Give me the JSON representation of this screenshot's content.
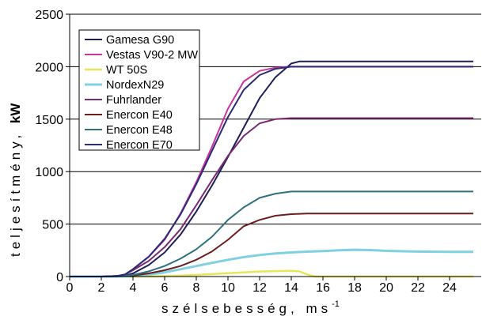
{
  "chart_data": {
    "type": "line",
    "title": "",
    "xlabel_main": "szélsebesség, ms",
    "xlabel_sup": "-1",
    "ylabel_main": "teljesítmény, ",
    "ylabel_unit": "kW",
    "xlim": [
      0,
      26
    ],
    "ylim": [
      0,
      2500
    ],
    "x_ticks": [
      "0",
      "2",
      "4",
      "6",
      "8",
      "10",
      "12",
      "14",
      "16",
      "18",
      "20",
      "22",
      "24"
    ],
    "y_ticks": [
      "0",
      "500",
      "1000",
      "1500",
      "2000",
      "2500"
    ],
    "grid": "horizontal",
    "legend_position": "top-left",
    "series": [
      {
        "name": "Gamesa G90",
        "color": "#1e1e5a",
        "width": 2,
        "x": [
          0,
          1,
          2,
          3,
          3.5,
          4,
          5,
          6,
          7,
          8,
          9,
          10,
          11,
          12,
          13,
          14,
          14.5,
          15,
          20,
          25.5
        ],
        "y": [
          0,
          0,
          0,
          5,
          10,
          30,
          110,
          230,
          400,
          620,
          870,
          1140,
          1420,
          1700,
          1900,
          2030,
          2050,
          2050,
          2050,
          2050
        ]
      },
      {
        "name": "Vestas V90-2 MW",
        "color": "#cc3399",
        "width": 2,
        "x": [
          0,
          1,
          2,
          3,
          3.5,
          4,
          5,
          6,
          7,
          8,
          9,
          10,
          11,
          12,
          13,
          14,
          15,
          20,
          25.5
        ],
        "y": [
          0,
          0,
          0,
          5,
          20,
          70,
          190,
          350,
          600,
          900,
          1240,
          1600,
          1860,
          1960,
          1990,
          2000,
          2000,
          2000,
          2000
        ]
      },
      {
        "name": "WT 50S",
        "color": "#e6e65a",
        "width": 2.5,
        "x": [
          0,
          2,
          3,
          4,
          5,
          6,
          7,
          8,
          9,
          10,
          11,
          12,
          13,
          14,
          14.5,
          15,
          15.5,
          20,
          25.5
        ],
        "y": [
          0,
          0,
          0,
          0,
          1,
          4,
          9,
          15,
          23,
          32,
          40,
          48,
          52,
          55,
          50,
          20,
          0,
          0,
          0
        ]
      },
      {
        "name": "NordexN29",
        "color": "#7fd0e0",
        "width": 3,
        "x": [
          0,
          2,
          3,
          4,
          5,
          6,
          7,
          8,
          9,
          10,
          11,
          12,
          13,
          14,
          15,
          16,
          17,
          18,
          19,
          20,
          22,
          24,
          25.5
        ],
        "y": [
          0,
          0,
          0,
          5,
          20,
          40,
          70,
          100,
          130,
          160,
          185,
          205,
          220,
          230,
          237,
          243,
          250,
          255,
          252,
          245,
          238,
          236,
          236
        ]
      },
      {
        "name": "Fuhrlander",
        "color": "#7a2a70",
        "width": 2,
        "x": [
          0,
          1,
          2,
          3,
          3.5,
          4,
          5,
          6,
          7,
          8,
          9,
          10,
          11,
          12,
          13,
          14,
          15,
          20,
          25.5
        ],
        "y": [
          0,
          0,
          0,
          5,
          20,
          60,
          150,
          280,
          450,
          680,
          920,
          1150,
          1340,
          1460,
          1500,
          1510,
          1510,
          1510,
          1510
        ]
      },
      {
        "name": "Enercon E40",
        "color": "#6b1e1e",
        "width": 2,
        "x": [
          0,
          2,
          3,
          4,
          5,
          6,
          7,
          8,
          9,
          10,
          11,
          12,
          13,
          14,
          15,
          20,
          25.5
        ],
        "y": [
          0,
          0,
          3,
          10,
          30,
          60,
          100,
          160,
          240,
          350,
          480,
          540,
          580,
          595,
          600,
          600,
          600
        ]
      },
      {
        "name": "Enercon E48",
        "color": "#2e7080",
        "width": 2,
        "x": [
          0,
          2,
          3,
          4,
          5,
          6,
          7,
          8,
          9,
          10,
          11,
          12,
          13,
          14,
          15,
          20,
          25.5
        ],
        "y": [
          0,
          0,
          3,
          15,
          50,
          100,
          170,
          260,
          380,
          540,
          660,
          750,
          790,
          810,
          810,
          810,
          810
        ]
      },
      {
        "name": "Enercon E70",
        "color": "#2a2a78",
        "width": 2,
        "x": [
          0,
          1,
          2,
          3,
          3.5,
          4,
          5,
          6,
          7,
          8,
          9,
          10,
          11,
          12,
          13,
          14,
          15,
          20,
          25.5
        ],
        "y": [
          0,
          0,
          0,
          5,
          20,
          70,
          190,
          360,
          590,
          880,
          1200,
          1520,
          1780,
          1920,
          1980,
          2000,
          2000,
          2000,
          2000
        ]
      }
    ]
  }
}
